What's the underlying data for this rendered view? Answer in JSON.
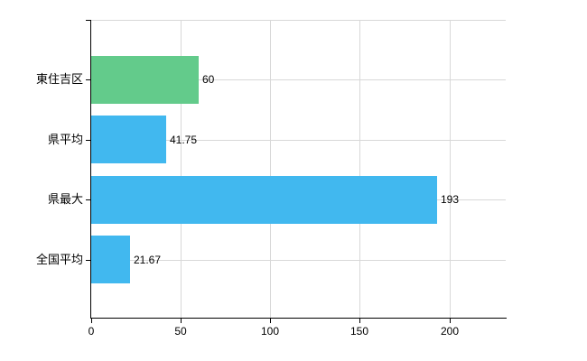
{
  "chart_data": {
    "type": "bar",
    "orientation": "horizontal",
    "title": "",
    "xlabel": "",
    "ylabel": "",
    "categories": [
      "東住吉区",
      "県平均",
      "県最大",
      "全国平均"
    ],
    "values": [
      60,
      41.75,
      193,
      21.67
    ],
    "value_labels": [
      "60",
      "41.75",
      "193",
      "21.67"
    ],
    "bar_colors": [
      "#63cb8b",
      "#41b8ef",
      "#41b8ef",
      "#41b8ef"
    ],
    "xticks": [
      "0",
      "50",
      "100",
      "150",
      "200"
    ],
    "xtick_values": [
      0,
      50,
      100,
      150,
      200
    ],
    "xlim": [
      0,
      231.7
    ],
    "grid": true,
    "legend": false,
    "colors": {
      "bar_default": "#41b8ef",
      "bar_highlight": "#63cb8b",
      "grid": "#d8d8d8",
      "axis": "#000000",
      "text": "#000000",
      "background": "#ffffff"
    }
  }
}
